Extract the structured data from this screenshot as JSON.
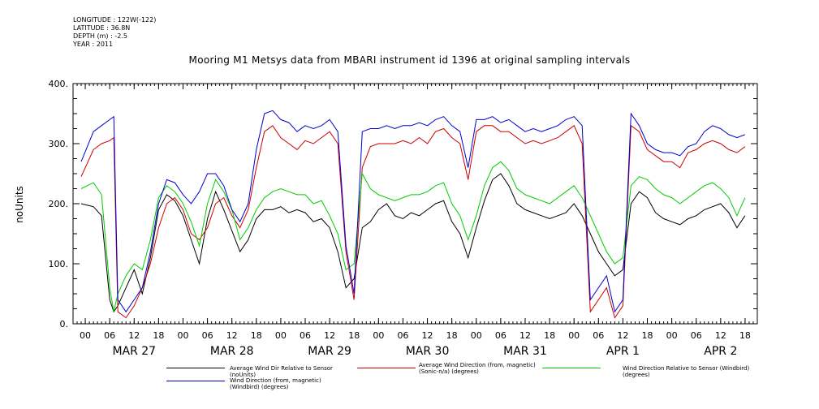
{
  "meta": {
    "longitude": "LONGITUDE : 122W(-122)",
    "latitude": "LATITUDE : 36.8N",
    "depth": "DEPTH (m) : -2.5",
    "year": "YEAR : 2011"
  },
  "chart_data": {
    "type": "line",
    "title": "Mooring M1 Metsys data from MBARI instrument id 1396 at original sampling intervals",
    "ylabel": "noUnits",
    "xlabel": "",
    "ylim": [
      0,
      400
    ],
    "yticks": [
      0,
      100,
      200,
      300,
      400
    ],
    "ytick_labels": [
      "0.",
      "100.",
      "200.",
      "300.",
      "400."
    ],
    "xlim": [
      -3,
      165
    ],
    "hour_ticks": [
      "00",
      "06",
      "12",
      "18",
      "00",
      "06",
      "12",
      "18",
      "00",
      "06",
      "12",
      "18",
      "00",
      "06",
      "12",
      "18",
      "00",
      "06",
      "12",
      "18",
      "00",
      "06",
      "12",
      "18",
      "00",
      "06",
      "12",
      "18"
    ],
    "day_labels": [
      "MAR 27",
      "MAR 28",
      "MAR 29",
      "MAR 30",
      "MAR 31",
      "APR  1",
      "APR  2"
    ],
    "grid": false,
    "legend_position": "bottom",
    "series": [
      {
        "name": "Average Wind Dir Relative to Sensor (noUnits)",
        "color": "#000000",
        "x": [
          -1,
          2,
          4,
          6,
          7,
          8,
          10,
          12,
          14,
          16,
          18,
          20,
          22,
          24,
          26,
          28,
          30,
          32,
          34,
          36,
          38,
          40,
          42,
          44,
          46,
          48,
          50,
          52,
          54,
          56,
          58,
          60,
          62,
          64,
          66,
          68,
          70,
          72,
          74,
          76,
          78,
          80,
          82,
          84,
          86,
          88,
          90,
          92,
          94,
          96,
          98,
          100,
          102,
          104,
          106,
          108,
          110,
          112,
          114,
          116,
          118,
          120,
          122,
          124,
          126,
          128,
          130,
          132,
          134,
          136,
          138,
          140,
          142,
          144,
          146,
          148,
          150,
          152,
          154,
          156,
          158,
          160,
          162
        ],
        "values": [
          200,
          195,
          180,
          40,
          20,
          30,
          60,
          90,
          50,
          110,
          190,
          215,
          205,
          180,
          140,
          100,
          175,
          220,
          190,
          155,
          120,
          140,
          175,
          190,
          190,
          195,
          185,
          190,
          185,
          170,
          175,
          160,
          120,
          60,
          75,
          160,
          170,
          190,
          200,
          180,
          175,
          185,
          180,
          190,
          200,
          205,
          170,
          150,
          110,
          160,
          205,
          240,
          250,
          230,
          200,
          190,
          185,
          180,
          175,
          180,
          185,
          200,
          180,
          150,
          120,
          100,
          80,
          90,
          200,
          220,
          210,
          185,
          175,
          170,
          165,
          175,
          180,
          190,
          195,
          200,
          185,
          160,
          180
        ]
      },
      {
        "name": "Average Wind Direction (from, magnetic) (Sonic-n/a) (degrees)",
        "color": "#cc0000",
        "x": [
          -1,
          2,
          4,
          6,
          7,
          8,
          10,
          12,
          14,
          16,
          18,
          20,
          22,
          24,
          26,
          28,
          30,
          32,
          34,
          36,
          38,
          40,
          42,
          44,
          46,
          48,
          50,
          52,
          54,
          56,
          58,
          60,
          62,
          64,
          66,
          68,
          70,
          72,
          74,
          76,
          78,
          80,
          82,
          84,
          86,
          88,
          90,
          92,
          94,
          96,
          98,
          100,
          102,
          104,
          106,
          108,
          110,
          112,
          114,
          116,
          118,
          120,
          122,
          124,
          126,
          128,
          130,
          132,
          134,
          136,
          138,
          140,
          142,
          144,
          146,
          148,
          150,
          152,
          154,
          156,
          158,
          160,
          162
        ],
        "values": [
          245,
          290,
          300,
          305,
          310,
          20,
          10,
          30,
          60,
          100,
          160,
          200,
          210,
          190,
          150,
          140,
          160,
          200,
          210,
          180,
          160,
          190,
          260,
          320,
          330,
          310,
          300,
          290,
          305,
          300,
          310,
          320,
          300,
          120,
          40,
          260,
          295,
          300,
          300,
          300,
          305,
          300,
          310,
          300,
          320,
          325,
          310,
          300,
          240,
          320,
          330,
          330,
          320,
          320,
          310,
          300,
          305,
          300,
          305,
          310,
          320,
          330,
          300,
          20,
          40,
          60,
          10,
          30,
          330,
          320,
          290,
          280,
          270,
          270,
          260,
          285,
          290,
          300,
          305,
          300,
          290,
          285,
          295
        ]
      },
      {
        "name": "Wind Direction Relative to Sensor (Windbird) (degrees)",
        "color": "#00cc00",
        "x": [
          -1,
          2,
          4,
          6,
          7,
          8,
          10,
          12,
          14,
          16,
          18,
          20,
          22,
          24,
          26,
          28,
          30,
          32,
          34,
          36,
          38,
          40,
          42,
          44,
          46,
          48,
          50,
          52,
          54,
          56,
          58,
          60,
          62,
          64,
          66,
          68,
          70,
          72,
          74,
          76,
          78,
          80,
          82,
          84,
          86,
          88,
          90,
          92,
          94,
          96,
          98,
          100,
          102,
          104,
          106,
          108,
          110,
          112,
          114,
          116,
          118,
          120,
          122,
          124,
          126,
          128,
          130,
          132,
          134,
          136,
          138,
          140,
          142,
          144,
          146,
          148,
          150,
          152,
          154,
          156,
          158,
          160,
          162
        ],
        "values": [
          225,
          235,
          215,
          60,
          20,
          50,
          80,
          100,
          90,
          140,
          210,
          230,
          220,
          200,
          170,
          130,
          200,
          240,
          220,
          190,
          140,
          160,
          190,
          210,
          220,
          225,
          220,
          215,
          215,
          200,
          205,
          180,
          150,
          90,
          100,
          250,
          225,
          215,
          210,
          205,
          210,
          215,
          215,
          220,
          230,
          235,
          200,
          180,
          140,
          180,
          230,
          260,
          270,
          255,
          225,
          215,
          210,
          205,
          200,
          210,
          220,
          230,
          210,
          180,
          150,
          120,
          100,
          110,
          230,
          245,
          240,
          225,
          215,
          210,
          200,
          210,
          220,
          230,
          235,
          225,
          210,
          180,
          210
        ]
      },
      {
        "name": "Wind Direction (from, magnetic) (Windbird) (degrees)",
        "color": "#0000cc",
        "x": [
          -1,
          2,
          4,
          6,
          7,
          8,
          10,
          12,
          14,
          16,
          18,
          20,
          22,
          24,
          26,
          28,
          30,
          32,
          34,
          36,
          38,
          40,
          42,
          44,
          46,
          48,
          50,
          52,
          54,
          56,
          58,
          60,
          62,
          64,
          66,
          68,
          70,
          72,
          74,
          76,
          78,
          80,
          82,
          84,
          86,
          88,
          90,
          92,
          94,
          96,
          98,
          100,
          102,
          104,
          106,
          108,
          110,
          112,
          114,
          116,
          118,
          120,
          122,
          124,
          126,
          128,
          130,
          132,
          134,
          136,
          138,
          140,
          142,
          144,
          146,
          148,
          150,
          152,
          154,
          156,
          158,
          160,
          162
        ],
        "values": [
          270,
          320,
          330,
          340,
          345,
          40,
          20,
          40,
          60,
          120,
          200,
          240,
          235,
          215,
          200,
          220,
          250,
          250,
          230,
          190,
          170,
          200,
          290,
          350,
          355,
          340,
          335,
          320,
          330,
          325,
          330,
          340,
          320,
          130,
          50,
          320,
          325,
          325,
          330,
          325,
          330,
          330,
          335,
          330,
          340,
          345,
          330,
          320,
          260,
          340,
          340,
          345,
          335,
          340,
          330,
          320,
          325,
          320,
          325,
          330,
          340,
          345,
          330,
          40,
          60,
          80,
          20,
          40,
          350,
          330,
          300,
          290,
          285,
          285,
          280,
          295,
          300,
          320,
          330,
          325,
          315,
          310,
          315
        ]
      }
    ]
  }
}
